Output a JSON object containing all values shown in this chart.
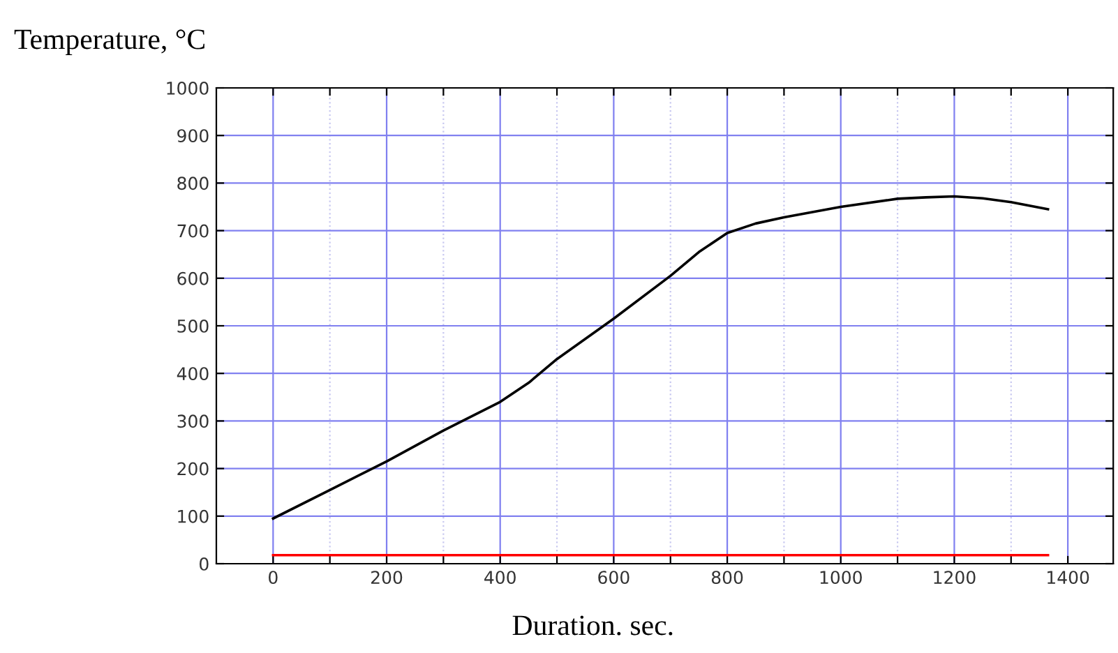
{
  "chart_data": {
    "type": "line",
    "title": "Temperature, °C",
    "xlabel": "Duration. sec.",
    "xlim": [
      -100,
      1480
    ],
    "ylim": [
      0,
      1000
    ],
    "xticks": [
      0,
      {
        "value": 100,
        "label": null
      },
      200,
      {
        "value": 300,
        "label": null
      },
      400,
      {
        "value": 500,
        "label": null
      },
      600,
      {
        "value": 700,
        "label": null
      },
      800,
      {
        "value": 900,
        "label": null
      },
      1000,
      {
        "value": 1100,
        "label": null
      },
      1200,
      {
        "value": 1300,
        "label": null
      },
      1400
    ],
    "yticks": [
      0,
      100,
      200,
      300,
      400,
      500,
      600,
      700,
      800,
      900,
      1000
    ],
    "grid": true,
    "legend": false,
    "marker": "none",
    "line_style": "solid",
    "series": [
      {
        "color": "#000000",
        "x": [
          0,
          100,
          200,
          300,
          400,
          450,
          500,
          600,
          700,
          750,
          800,
          850,
          900,
          1000,
          1100,
          1150,
          1200,
          1250,
          1300,
          1365
        ],
        "values": [
          95,
          155,
          215,
          280,
          340,
          380,
          430,
          515,
          605,
          655,
          695,
          715,
          728,
          750,
          767,
          770,
          772,
          768,
          760,
          745
        ]
      },
      {
        "color": "#ff0000",
        "x": [
          0,
          1365
        ],
        "values": [
          18,
          18
        ]
      }
    ]
  }
}
